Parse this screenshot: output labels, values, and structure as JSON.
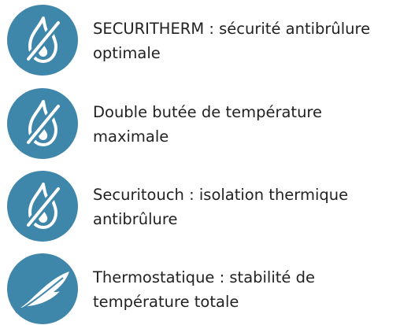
{
  "items": [
    {
      "lines": [
        "SECURITHERM : sécurité antibrûlure",
        "optimale"
      ]
    },
    {
      "lines": [
        "Double butée de température",
        "maximale"
      ]
    },
    {
      "lines": [
        "Securitouch : isolation thermique",
        "antibrûlure"
      ]
    },
    {
      "lines": [
        "Thermostatique : stabilité de",
        "température totale"
      ]
    }
  ]
}
